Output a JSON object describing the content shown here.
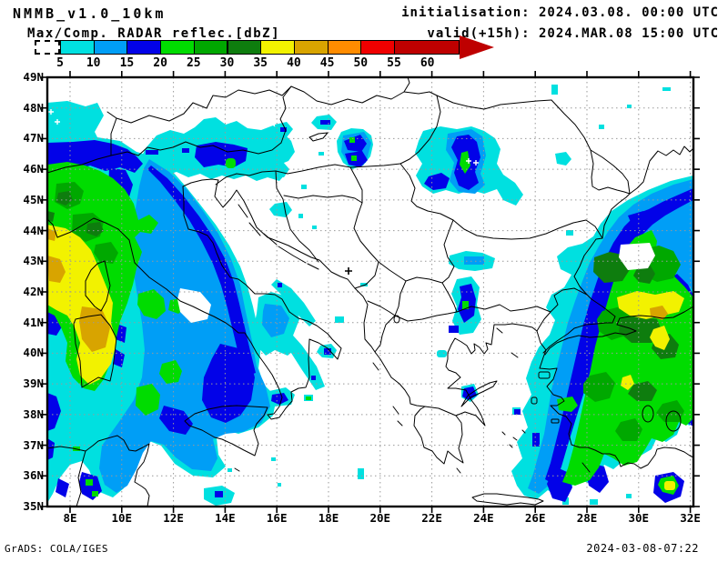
{
  "header": {
    "title": "NMMB_v1.0_10km",
    "subtitle": "Max/Comp. RADAR reflec.[dbZ]",
    "init": "initialisation: 2024.03.08. 00:00 UTC",
    "valid": "valid(+15h): 2024.MAR.08 15:00 UTC"
  },
  "footer": {
    "left": "GrADS: COLA/IGES",
    "right": "2024-03-08-07:22"
  },
  "colorbar": {
    "values": [
      5,
      10,
      15,
      20,
      25,
      30,
      35,
      40,
      45,
      50,
      55,
      60
    ],
    "colors": [
      "#00E0E0",
      "#009EF6",
      "#0202E8",
      "#00DC00",
      "#00A800",
      "#0E7D0E",
      "#F2F200",
      "#D8A400",
      "#FF8C00",
      "#F00000",
      "#BE0000"
    ],
    "underflow_style": "white dashed box",
    "overflow_color": "#BE0000"
  },
  "map": {
    "lat_labels": [
      "49N",
      "48N",
      "47N",
      "46N",
      "45N",
      "44N",
      "43N",
      "42N",
      "41N",
      "40N",
      "39N",
      "38N",
      "37N",
      "36N",
      "35N"
    ],
    "lon_labels": [
      "8E",
      "10E",
      "12E",
      "14E",
      "16E",
      "18E",
      "20E",
      "22E",
      "24E",
      "26E",
      "28E",
      "30E",
      "32E"
    ],
    "lat_deg": [
      49,
      48,
      47,
      46,
      45,
      44,
      43,
      42,
      41,
      40,
      39,
      38,
      37,
      36,
      35
    ],
    "lon_deg": [
      8,
      10,
      12,
      14,
      16,
      18,
      20,
      22,
      24,
      26,
      28,
      30,
      32
    ],
    "grid_color": "#999999"
  },
  "chart_data": {
    "type": "heatmap",
    "title": "Max/Comp. RADAR reflec.[dbZ]",
    "model": "NMMB_v1.0_10km",
    "initialisation": "2024.03.08. 00:00 UTC",
    "valid": "+15h  2024.MAR.08 15:00 UTC",
    "units": "dBZ",
    "levels_dbz": [
      5,
      10,
      15,
      20,
      25,
      30,
      35,
      40,
      45,
      50,
      55,
      60
    ],
    "palette": [
      "#00E0E0",
      "#009EF6",
      "#0202E8",
      "#00DC00",
      "#00A800",
      "#0E7D0E",
      "#F2F200",
      "#D8A400",
      "#FF8C00",
      "#F00000",
      "#BE0000"
    ],
    "x_axis": {
      "ticks": [
        "8E",
        "10E",
        "12E",
        "14E",
        "16E",
        "18E",
        "20E",
        "22E",
        "24E",
        "26E",
        "28E",
        "30E",
        "32E"
      ],
      "range_deg_east": [
        7.1,
        32.1
      ]
    },
    "y_axis": {
      "ticks": [
        "49N",
        "48N",
        "47N",
        "46N",
        "45N",
        "44N",
        "43N",
        "42N",
        "41N",
        "40N",
        "39N",
        "38N",
        "37N",
        "36N",
        "35N"
      ],
      "range_deg_north": [
        35,
        49
      ]
    },
    "grid": "dotted, 2 deg lon x 1 deg lat",
    "legend_position": "top, horizontal arrow bar",
    "regions": [
      {
        "area": "NW Italy / Ligurian-Tyrrhenian Seas / Corsica-Sardinia",
        "extent": "7E-14E, 36N-47N",
        "peak_dbz": 45,
        "notes": "widespread 5-35 dBZ, yellow/gold cores 35-45 dBZ near 7.5-10E 40-44N"
      },
      {
        "area": "Central Adriatic / Slovenia / NE Italy",
        "extent": "11E-17E, 45.5N-47.5N",
        "peak_dbz": 25,
        "notes": "cyan shield with blue core near 14.5E 46.5N"
      },
      {
        "area": "W Hungary scattered cells",
        "extent": "15.5E-19E, 46N-47.5N",
        "peak_dbz": 20
      },
      {
        "area": "W Romania / Banat cluster",
        "extent": "21.5E-26E, 45N-47.5N",
        "peak_dbz": 25,
        "notes": "blue cores with small 20-25 dBZ streak near 23E 46.5N"
      },
      {
        "area": "NW Turkey / Marmara / SW Black Sea",
        "extent": "26E-32E, 36N-44N",
        "peak_dbz": 45,
        "notes": "broad 20-35 dBZ mass, yellow 35-45 dBZ band near 29-31E 41-42N"
      },
      {
        "area": "NE Greece cell",
        "extent": "22.5E-23.3E, 41N-42.5N",
        "peak_dbz": 25
      },
      {
        "area": "Calabria cell",
        "extent": "15.8E-16.8E, 38.5N-39.2N",
        "peak_dbz": 20
      },
      {
        "area": "N Tunisia / Sicily channel band",
        "extent": "7E-12E, 35N-37.5N",
        "peak_dbz": 25
      }
    ],
    "marker": {
      "symbol": "+",
      "approx_position": "18.8E, 42.7N"
    }
  }
}
